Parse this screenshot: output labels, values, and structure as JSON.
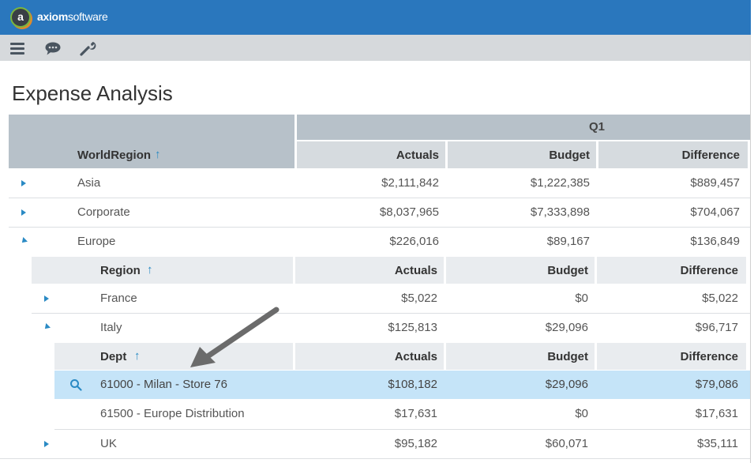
{
  "app": {
    "logo_letter": "a",
    "logo_bold": "axiom",
    "logo_rest": "software"
  },
  "toolbar": {
    "icons": [
      "menu-icon",
      "chat-icon",
      "wrench-icon"
    ]
  },
  "page": {
    "title": "Expense Analysis"
  },
  "table": {
    "group_header": "Q1",
    "top_header": {
      "label": "WorldRegion",
      "sort": "↑",
      "columns": [
        "Actuals",
        "Budget",
        "Difference"
      ]
    },
    "rows": {
      "asia": {
        "label": "Asia",
        "actuals": "$2,111,842",
        "budget": "$1,222,385",
        "difference": "$889,457"
      },
      "corporate": {
        "label": "Corporate",
        "actuals": "$8,037,965",
        "budget": "$7,333,898",
        "difference": "$704,067"
      },
      "europe": {
        "label": "Europe",
        "actuals": "$226,016",
        "budget": "$89,167",
        "difference": "$136,849"
      }
    },
    "region_header": {
      "label": "Region",
      "sort": "↑",
      "columns": [
        "Actuals",
        "Budget",
        "Difference"
      ]
    },
    "region_rows": {
      "france": {
        "label": "France",
        "actuals": "$5,022",
        "budget": "$0",
        "difference": "$5,022"
      },
      "italy": {
        "label": "Italy",
        "actuals": "$125,813",
        "budget": "$29,096",
        "difference": "$96,717"
      },
      "uk": {
        "label": "UK",
        "actuals": "$95,182",
        "budget": "$60,071",
        "difference": "$35,111"
      }
    },
    "dept_header": {
      "label": "Dept",
      "sort": "↑",
      "columns": [
        "Actuals",
        "Budget",
        "Difference"
      ]
    },
    "dept_rows": {
      "milan": {
        "label": "61000 - Milan - Store 76",
        "actuals": "$108,182",
        "budget": "$29,096",
        "difference": "$79,086"
      },
      "distribution": {
        "label": "61500 - Europe Distribution",
        "actuals": "$17,631",
        "budget": "$0",
        "difference": "$17,631"
      }
    }
  },
  "colors": {
    "topbar": "#2a77bd",
    "toolbar": "#d6d9dc",
    "accent": "#2a8ac4",
    "selected_row": "#c5e4f8"
  }
}
